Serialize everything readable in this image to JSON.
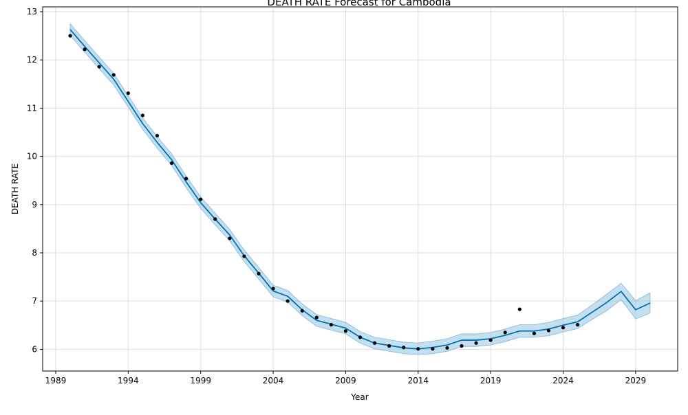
{
  "chart_data": {
    "type": "line",
    "title": "DEATH RATE Forecast for Cambodia",
    "xlabel": "Year",
    "ylabel": "DEATH RATE",
    "xlim": [
      1988.1,
      2031.9
    ],
    "ylim": [
      5.55,
      13.1
    ],
    "x_ticks": [
      1989,
      1994,
      1999,
      2004,
      2009,
      2014,
      2019,
      2024,
      2029
    ],
    "x_tick_labels": [
      "1989",
      "1994",
      "1999",
      "2004",
      "2009",
      "2014",
      "2019",
      "2024",
      "2029"
    ],
    "y_ticks": [
      6,
      7,
      8,
      9,
      10,
      11,
      12,
      13
    ],
    "y_tick_labels": [
      "6",
      "7",
      "8",
      "9",
      "10",
      "11",
      "12",
      "13"
    ],
    "grid": true,
    "colors": {
      "forecast": "#0072B2",
      "band": "#9cc9e6",
      "observed": "#000000",
      "grid": "#dddddd"
    },
    "series": [
      {
        "kind": "observed",
        "x": [
          1990,
          1991,
          1992,
          1993,
          1994,
          1995,
          1996,
          1997,
          1998,
          1999,
          2000,
          2001,
          2002,
          2003,
          2004,
          2005,
          2006,
          2007,
          2008,
          2009,
          2010,
          2011,
          2012,
          2013,
          2014,
          2015,
          2016,
          2017,
          2018,
          2019,
          2020,
          2021,
          2022,
          2023,
          2024,
          2025
        ],
        "y": [
          12.5,
          12.22,
          11.86,
          11.69,
          11.31,
          10.85,
          10.43,
          9.86,
          9.54,
          9.11,
          8.7,
          8.3,
          7.93,
          7.57,
          7.26,
          7.0,
          6.8,
          6.66,
          6.51,
          6.38,
          6.25,
          6.13,
          6.07,
          6.04,
          6.01,
          6.01,
          6.03,
          6.07,
          6.13,
          6.19,
          6.35,
          6.83,
          6.33,
          6.39,
          6.45,
          6.51
        ]
      },
      {
        "kind": "forecast",
        "x": [
          1990,
          1991,
          1992,
          1993,
          1994,
          1995,
          1996,
          1997,
          1998,
          1999,
          2000,
          2001,
          2002,
          2003,
          2004,
          2005,
          2006,
          2007,
          2008,
          2009,
          2010,
          2011,
          2012,
          2013,
          2014,
          2015,
          2016,
          2017,
          2018,
          2019,
          2020,
          2021,
          2022,
          2023,
          2024,
          2025,
          2026,
          2027,
          2028,
          2029,
          2030
        ],
        "y": [
          12.63,
          12.28,
          11.94,
          11.6,
          11.14,
          10.68,
          10.29,
          9.93,
          9.47,
          9.04,
          8.7,
          8.37,
          7.94,
          7.58,
          7.21,
          7.1,
          6.82,
          6.6,
          6.52,
          6.44,
          6.25,
          6.13,
          6.08,
          6.03,
          6.01,
          6.04,
          6.09,
          6.19,
          6.19,
          6.22,
          6.29,
          6.38,
          6.38,
          6.42,
          6.5,
          6.57,
          6.77,
          6.97,
          7.2,
          6.82,
          6.96
        ],
        "lower": [
          12.51,
          12.16,
          11.82,
          11.48,
          11.02,
          10.56,
          10.17,
          9.81,
          9.35,
          8.92,
          8.58,
          8.25,
          7.82,
          7.46,
          7.09,
          6.98,
          6.7,
          6.48,
          6.4,
          6.32,
          6.13,
          6.01,
          5.96,
          5.91,
          5.89,
          5.91,
          5.96,
          6.06,
          6.06,
          6.09,
          6.16,
          6.25,
          6.25,
          6.28,
          6.36,
          6.43,
          6.62,
          6.8,
          7.03,
          6.63,
          6.75
        ],
        "upper": [
          12.75,
          12.4,
          12.06,
          11.72,
          11.26,
          10.8,
          10.41,
          10.05,
          9.59,
          9.16,
          8.82,
          8.49,
          8.06,
          7.7,
          7.33,
          7.22,
          6.94,
          6.72,
          6.64,
          6.56,
          6.37,
          6.25,
          6.2,
          6.15,
          6.13,
          6.17,
          6.22,
          6.32,
          6.32,
          6.35,
          6.42,
          6.51,
          6.51,
          6.56,
          6.64,
          6.71,
          6.92,
          7.14,
          7.37,
          7.01,
          7.17
        ]
      }
    ]
  }
}
